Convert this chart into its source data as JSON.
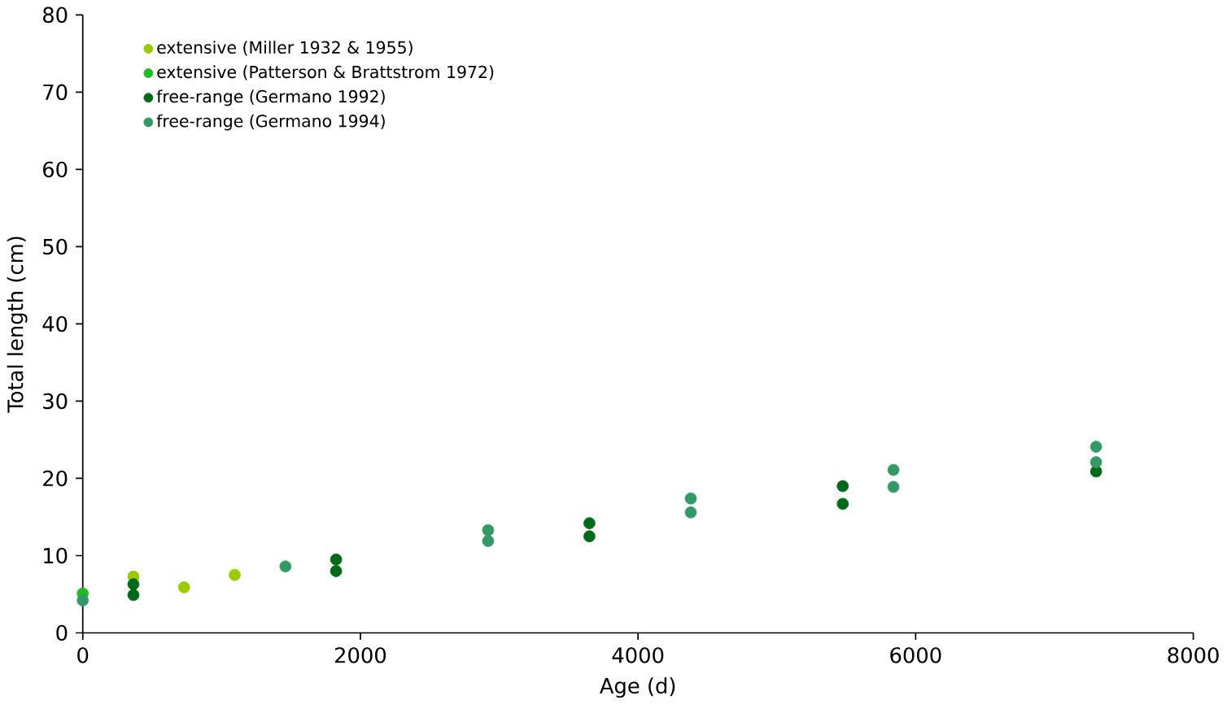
{
  "chart_data": {
    "type": "scatter",
    "xlabel": "Age (d)",
    "ylabel": "Total length (cm)",
    "xlim": [
      0,
      8000
    ],
    "ylim": [
      0,
      80
    ],
    "xticks": [
      0,
      2000,
      4000,
      6000,
      8000
    ],
    "yticks": [
      0,
      10,
      20,
      30,
      40,
      50,
      60,
      70,
      80
    ],
    "grid": false,
    "legend": "top left",
    "marker": "circle",
    "series": [
      {
        "name": "extensive (Miller 1932 & 1955)",
        "color": "#99cc00",
        "x": [
          365,
          730,
          1095
        ],
        "values": [
          7.3,
          5.9,
          7.5
        ]
      },
      {
        "name": "extensive (Patterson & Brattstrom 1972)",
        "color": "#22bb22",
        "x": [
          0
        ],
        "values": [
          5.1
        ]
      },
      {
        "name": "free-range (Germano 1992)",
        "color": "#006a1a",
        "x": [
          365,
          365,
          1825,
          1825,
          3650,
          3650,
          5475,
          5475,
          7300
        ],
        "values": [
          6.3,
          4.9,
          9.5,
          8.0,
          14.2,
          12.5,
          19.0,
          16.7,
          20.9
        ]
      },
      {
        "name": "free-range (Germano 1994)",
        "color": "#339966",
        "x": [
          0,
          1460,
          2920,
          2920,
          4380,
          4380,
          5840,
          5840,
          7300,
          7300
        ],
        "values": [
          4.2,
          8.6,
          13.3,
          11.9,
          17.4,
          15.6,
          21.1,
          18.9,
          24.1,
          22.1
        ]
      }
    ]
  }
}
